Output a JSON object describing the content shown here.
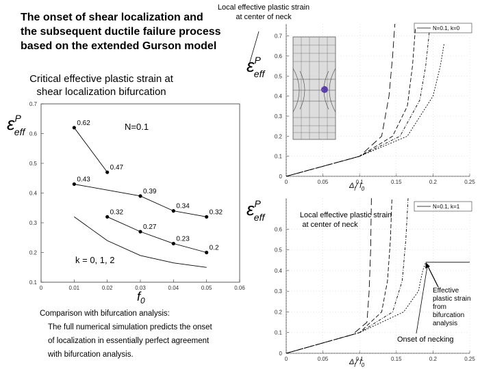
{
  "title": [
    "The onset of shear localization and",
    "the subsequent ductile failure process",
    "based on the extended Gurson model"
  ],
  "subtitle": [
    "Critical effective plastic strain at",
    "shear localization bifurcation"
  ],
  "caption": {
    "heading": "Comparison with bifurcation analysis:",
    "lines": [
      "The full numerical simulation predicts the onset",
      "of  localization in essentially perfect agreement",
      "with bifurcation analysis."
    ]
  },
  "chart_data": [
    {
      "type": "line",
      "y_label": {
        "symbol": "ε",
        "sup": "P",
        "sub": "eff"
      },
      "x_label": {
        "symbol": "f",
        "sub": "0"
      },
      "annotations": [
        "N=0.1",
        "k = 0, 1, 2"
      ],
      "xlim": [
        0,
        0.06
      ],
      "ylim": [
        0.1,
        0.7
      ],
      "xticks": [
        0,
        0.01,
        0.02,
        0.03,
        0.04,
        0.05,
        0.06
      ],
      "yticks": [
        0.1,
        0.2,
        0.3,
        0.4,
        0.5,
        0.6,
        0.7
      ],
      "markers": true,
      "data_labels": true,
      "series": [
        {
          "color": "#000000",
          "x": [
            0.01,
            0.02
          ],
          "values": [
            0.62,
            0.47
          ]
        },
        {
          "color": "#000000",
          "x": [
            0.01,
            0.03,
            0.04,
            0.05
          ],
          "values": [
            0.43,
            0.39,
            0.34,
            0.32
          ]
        },
        {
          "color": "#000000",
          "x": [
            0.02,
            0.03,
            0.04,
            0.05
          ],
          "values": [
            0.32,
            0.27,
            0.23,
            0.2
          ]
        },
        {
          "color": "#000000",
          "x": [
            0.01,
            0.02,
            0.03,
            0.04,
            0.05
          ],
          "values": [
            0.32,
            0.24,
            0.19,
            0.165,
            0.15
          ],
          "markers": false,
          "data_labels": false
        }
      ]
    },
    {
      "type": "line",
      "y_label": {
        "symbol": "ε",
        "sup": "P",
        "sub": "eff"
      },
      "x_label": {
        "symbol": "Δ",
        "sub": "l",
        "rest": "/ l",
        "sub2": "0"
      },
      "legend_text": "N=0.1, k=0",
      "annotations": [
        "Local effective plastic strain",
        "at center of neck"
      ],
      "xlim": [
        0,
        0.25
      ],
      "ylim": [
        0,
        0.76
      ],
      "xticks": [
        0,
        0.05,
        0.1,
        0.15,
        0.2,
        0.25
      ],
      "yticks": [
        0,
        0.1,
        0.2,
        0.3,
        0.4,
        0.5,
        0.6,
        0.7
      ],
      "markers": false,
      "data_labels": false,
      "series": [
        {
          "color": "#000000",
          "dash": "10,5",
          "x": [
            0,
            0.1,
            0.13,
            0.14,
            0.145,
            0.148
          ],
          "values": [
            0,
            0.1,
            0.2,
            0.4,
            0.6,
            0.76
          ]
        },
        {
          "color": "#000000",
          "dash": "6,3",
          "x": [
            0,
            0.1,
            0.145,
            0.165,
            0.172,
            0.176
          ],
          "values": [
            0,
            0.1,
            0.2,
            0.35,
            0.55,
            0.74
          ]
        },
        {
          "color": "#000000",
          "dash": "4,2,1,2",
          "x": [
            0,
            0.1,
            0.155,
            0.182,
            0.19,
            0.195
          ],
          "values": [
            0,
            0.1,
            0.2,
            0.38,
            0.55,
            0.72
          ]
        },
        {
          "color": "#000000",
          "dash": "2,2",
          "x": [
            0,
            0.1,
            0.165,
            0.2,
            0.21,
            0.215
          ],
          "values": [
            0,
            0.1,
            0.2,
            0.4,
            0.55,
            0.66
          ]
        }
      ]
    },
    {
      "type": "line",
      "y_label": {
        "symbol": "ε",
        "sup": "P",
        "sub": "eff"
      },
      "x_label": {
        "symbol": "Δ",
        "sub": "l",
        "rest": "/ l",
        "sub2": "0"
      },
      "legend_text": "N=0.1, k=1",
      "annotations": [
        "Local effective plastic strain",
        "at center of neck",
        "Effective",
        "plastic strain",
        "from",
        "bifurcation",
        "analysis",
        "Onset of necking"
      ],
      "xlim": [
        0,
        0.25
      ],
      "ylim": [
        0,
        0.75
      ],
      "xticks": [
        0,
        0.05,
        0.1,
        0.15,
        0.2,
        0.25
      ],
      "yticks": [
        0,
        0.1,
        0.2,
        0.3,
        0.4,
        0.5,
        0.6
      ],
      "markers": false,
      "data_labels": false,
      "series": [
        {
          "color": "#000000",
          "dash": "10,5",
          "x": [
            0,
            0.09,
            0.11,
            0.113,
            0.115,
            0.116
          ],
          "values": [
            0,
            0.09,
            0.15,
            0.3,
            0.5,
            0.75
          ]
        },
        {
          "color": "#000000",
          "dash": "6,3",
          "x": [
            0,
            0.1,
            0.13,
            0.138,
            0.142,
            0.144
          ],
          "values": [
            0,
            0.1,
            0.2,
            0.35,
            0.55,
            0.75
          ]
        },
        {
          "color": "#000000",
          "dash": "4,2,1,2",
          "x": [
            0,
            0.1,
            0.145,
            0.158,
            0.163,
            0.166
          ],
          "values": [
            0,
            0.1,
            0.2,
            0.35,
            0.55,
            0.75
          ]
        },
        {
          "color": "#000000",
          "dash": "2,2",
          "x": [
            0,
            0.1,
            0.16,
            0.18,
            0.186,
            0.19
          ],
          "values": [
            0,
            0.1,
            0.2,
            0.3,
            0.4,
            0.44
          ]
        },
        {
          "color": "#000000",
          "dash": "",
          "x": [
            0.19,
            0.25
          ],
          "values": [
            0.44,
            0.44
          ]
        }
      ]
    }
  ]
}
